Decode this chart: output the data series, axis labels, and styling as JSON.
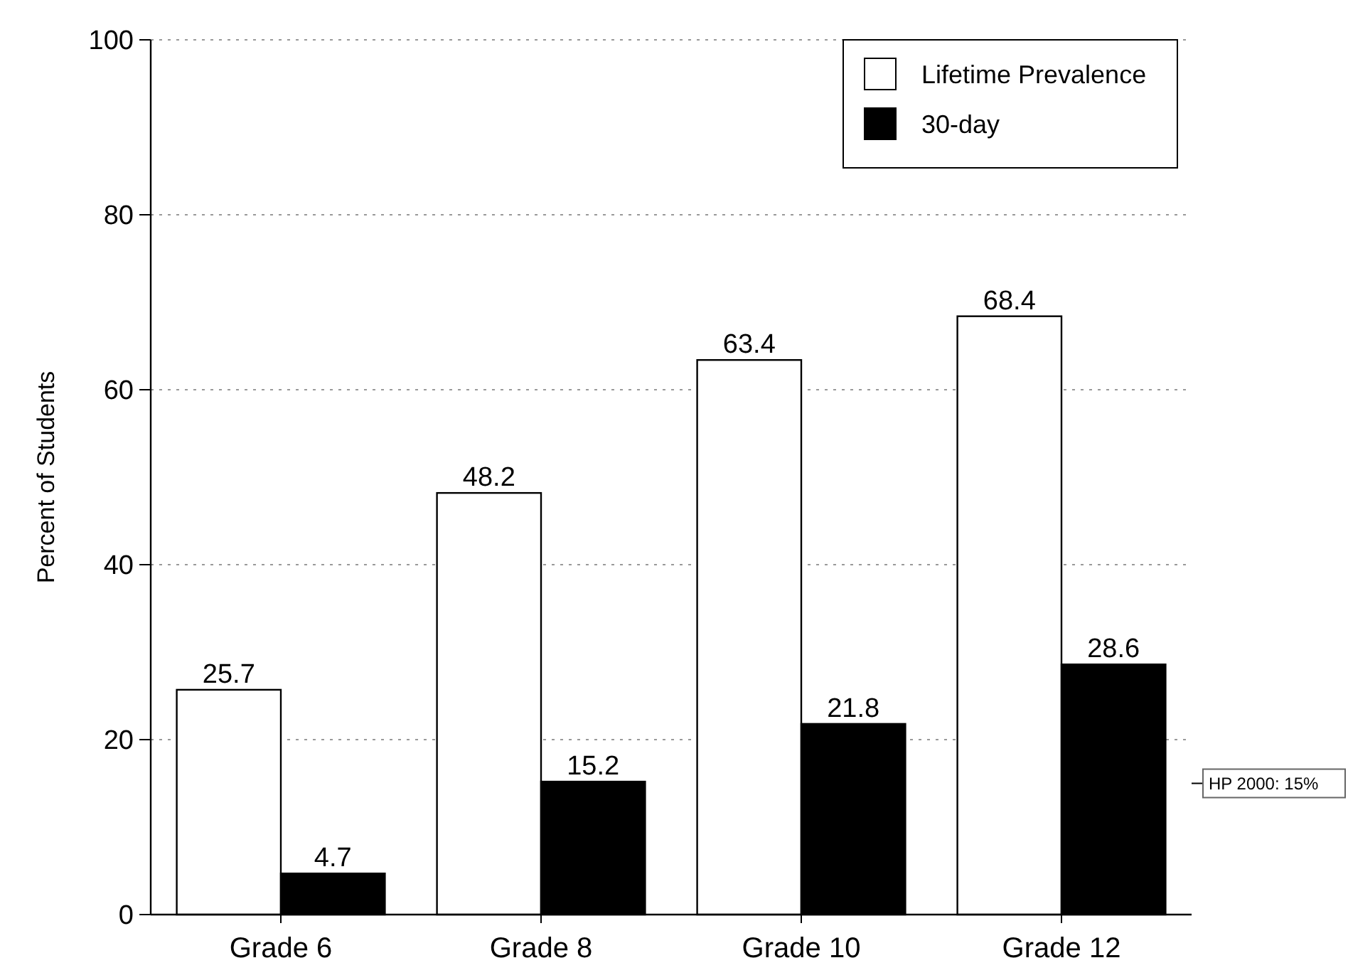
{
  "chart_data": {
    "type": "bar",
    "ylabel": "Percent of Students",
    "categories": [
      "Grade 6",
      "Grade 8",
      "Grade 10",
      "Grade 12"
    ],
    "series": [
      {
        "name": "Lifetime Prevalence",
        "color": "#ffffff",
        "values": [
          25.7,
          48.2,
          63.4,
          68.4
        ]
      },
      {
        "name": "30-day",
        "color": "#000000",
        "values": [
          4.7,
          15.2,
          21.8,
          28.6
        ]
      }
    ],
    "ylim": [
      0,
      100
    ],
    "yticks": [
      0,
      20,
      40,
      60,
      80,
      100
    ],
    "grid": "y",
    "legend": "top right",
    "data_labels": true,
    "ref_lines": [
      {
        "axis": "y",
        "value": 15,
        "label": "HP 2000: 15%"
      }
    ]
  }
}
